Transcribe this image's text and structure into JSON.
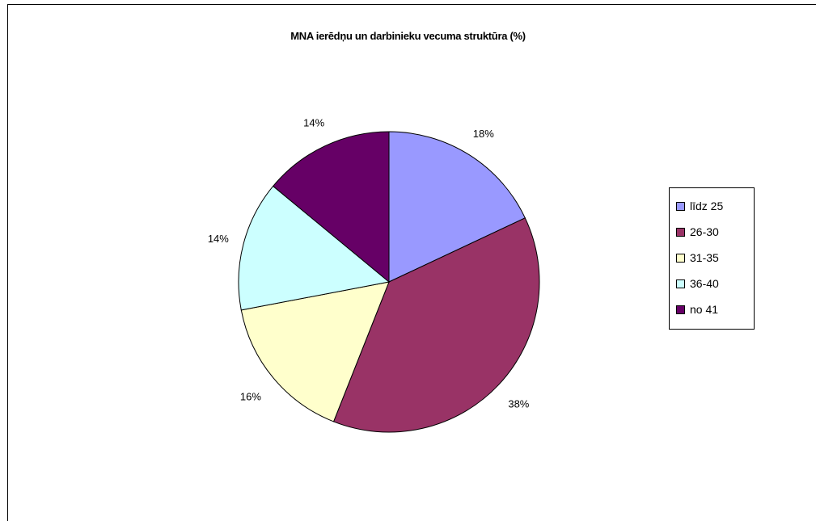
{
  "chart_data": {
    "type": "pie",
    "title": "MNA ierēdņu un darbinieku vecuma struktūra (%)",
    "categories": [
      "līdz 25",
      "26-30",
      "31-35",
      "36-40",
      "no 41"
    ],
    "values": [
      18,
      38,
      16,
      14,
      14
    ],
    "labels": [
      "18%",
      "38%",
      "16%",
      "14%",
      "14%"
    ],
    "colors": [
      "#9999ff",
      "#993366",
      "#ffffcc",
      "#ccffff",
      "#660066"
    ],
    "legend_position": "right"
  }
}
